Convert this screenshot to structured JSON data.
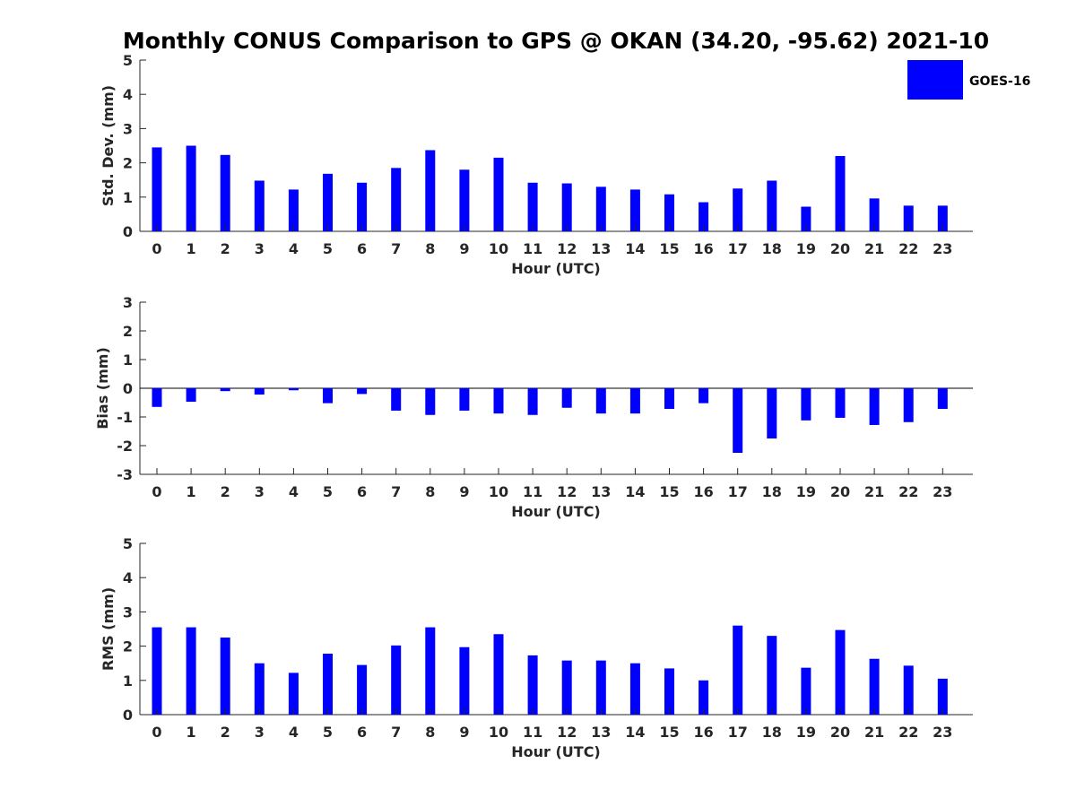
{
  "figure_title": "Monthly CONUS Comparison to GPS @ OKAN (34.20, -95.62) 2021-10",
  "legend": {
    "label": "GOES-16",
    "color": "#0000ff"
  },
  "chart_data": [
    {
      "type": "bar",
      "ylabel": "Std. Dev. (mm)",
      "xlabel": "Hour (UTC)",
      "ylim": [
        0,
        5
      ],
      "yticks": [
        0,
        1,
        2,
        3,
        4,
        5
      ],
      "categories": [
        "0",
        "1",
        "2",
        "3",
        "4",
        "5",
        "6",
        "7",
        "8",
        "9",
        "10",
        "11",
        "12",
        "13",
        "14",
        "15",
        "16",
        "17",
        "18",
        "19",
        "20",
        "21",
        "22",
        "23"
      ],
      "series": [
        {
          "name": "GOES-16",
          "color": "#0000ff",
          "values": [
            2.45,
            2.5,
            2.23,
            1.48,
            1.22,
            1.68,
            1.42,
            1.85,
            2.37,
            1.8,
            2.15,
            1.42,
            1.4,
            1.3,
            1.22,
            1.08,
            0.85,
            1.25,
            1.48,
            0.72,
            2.2,
            0.96,
            0.75,
            0.75
          ]
        }
      ]
    },
    {
      "type": "bar",
      "ylabel": "Bias (mm)",
      "xlabel": "Hour (UTC)",
      "ylim": [
        -3,
        3
      ],
      "yticks": [
        -3,
        -2,
        -1,
        0,
        1,
        2,
        3
      ],
      "zero_line": true,
      "categories": [
        "0",
        "1",
        "2",
        "3",
        "4",
        "5",
        "6",
        "7",
        "8",
        "9",
        "10",
        "11",
        "12",
        "13",
        "14",
        "15",
        "16",
        "17",
        "18",
        "19",
        "20",
        "21",
        "22",
        "23"
      ],
      "series": [
        {
          "name": "GOES-16",
          "color": "#0000ff",
          "values": [
            -0.65,
            -0.47,
            -0.1,
            -0.22,
            -0.07,
            -0.52,
            -0.2,
            -0.78,
            -0.93,
            -0.78,
            -0.88,
            -0.93,
            -0.68,
            -0.88,
            -0.88,
            -0.72,
            -0.52,
            -2.25,
            -1.75,
            -1.12,
            -1.03,
            -1.28,
            -1.18,
            -0.72
          ]
        }
      ]
    },
    {
      "type": "bar",
      "ylabel": "RMS (mm)",
      "xlabel": "Hour (UTC)",
      "ylim": [
        0,
        5
      ],
      "yticks": [
        0,
        1,
        2,
        3,
        4,
        5
      ],
      "categories": [
        "0",
        "1",
        "2",
        "3",
        "4",
        "5",
        "6",
        "7",
        "8",
        "9",
        "10",
        "11",
        "12",
        "13",
        "14",
        "15",
        "16",
        "17",
        "18",
        "19",
        "20",
        "21",
        "22",
        "23"
      ],
      "series": [
        {
          "name": "GOES-16",
          "color": "#0000ff",
          "values": [
            2.55,
            2.55,
            2.25,
            1.5,
            1.22,
            1.78,
            1.45,
            2.02,
            2.55,
            1.97,
            2.35,
            1.73,
            1.58,
            1.58,
            1.5,
            1.35,
            1.0,
            2.6,
            2.3,
            1.37,
            2.47,
            1.63,
            1.43,
            1.05
          ]
        }
      ]
    }
  ]
}
